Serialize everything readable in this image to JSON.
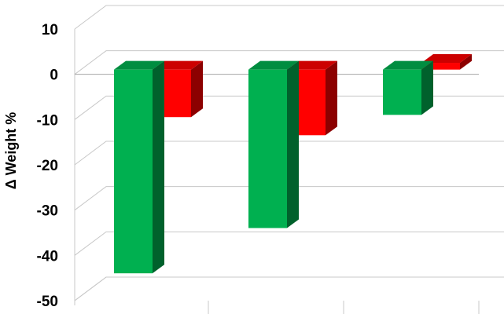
{
  "chart_data": {
    "type": "bar",
    "style": "3d-clustered-column",
    "ylabel": "Δ Weight %",
    "ylim": [
      -50,
      10
    ],
    "yticks": [
      10,
      0,
      -10,
      -20,
      -30,
      -40,
      -50
    ],
    "grid": true,
    "legend": "none",
    "categories": [
      "",
      "",
      ""
    ],
    "series": [
      {
        "color": "#00b050",
        "values": [
          -45,
          -35,
          -10
        ]
      },
      {
        "color": "#ff0000",
        "values": [
          -10.5,
          -14.5,
          1.5
        ]
      }
    ]
  }
}
